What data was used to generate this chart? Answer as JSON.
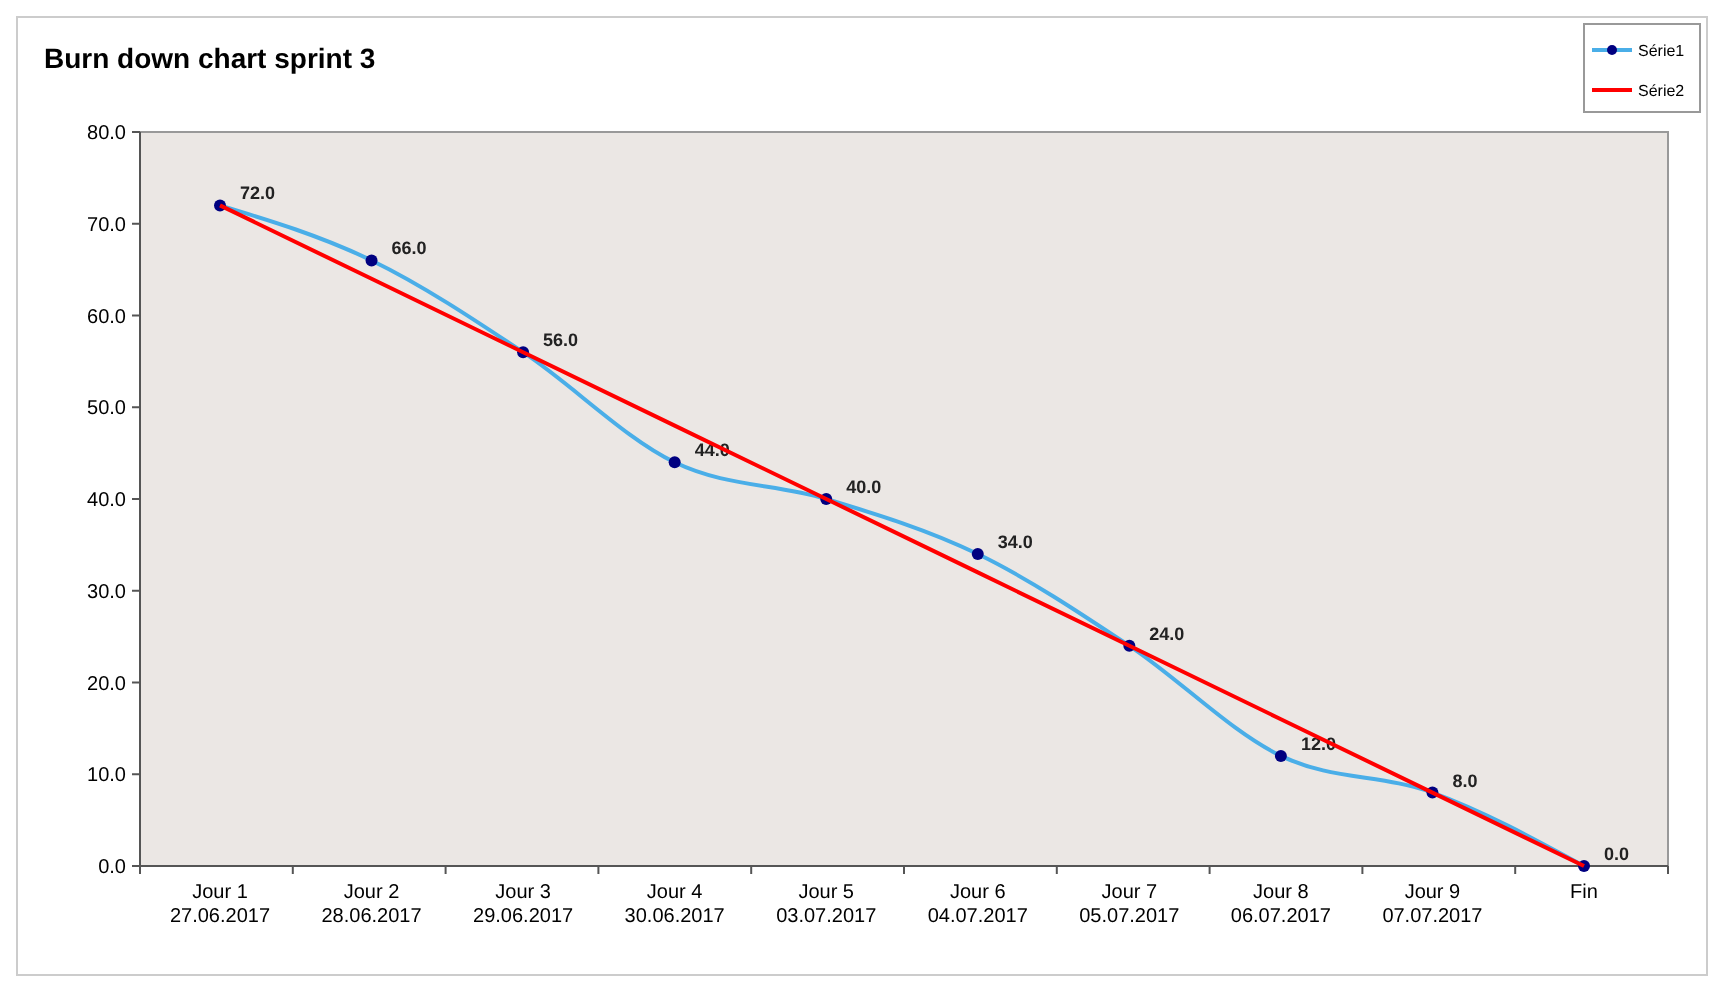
{
  "chart_data": {
    "type": "line",
    "title": "Burn down chart sprint 3",
    "categories": [
      "Jour 1\n27.06.2017",
      "Jour 2\n28.06.2017",
      "Jour 3\n29.06.2017",
      "Jour 4\n30.06.2017",
      "Jour 5\n03.07.2017",
      "Jour 6\n04.07.2017",
      "Jour 7\n05.07.2017",
      "Jour 8\n06.07.2017",
      "Jour 9\n07.07.2017",
      "Fin"
    ],
    "series": [
      {
        "name": "Série1",
        "color": "#4aaee8",
        "marker": "circle",
        "values": [
          72,
          66,
          56,
          44,
          40,
          34,
          24,
          12,
          8,
          0
        ],
        "value_labels": [
          "72.0",
          "66.0",
          "56.0",
          "44.0",
          "40.0",
          "34.0",
          "24.0",
          "12.0",
          "8.0",
          "0.0"
        ]
      },
      {
        "name": "Série2",
        "color": "#ff0000",
        "marker": "none",
        "values": [
          72,
          64,
          56,
          48,
          40,
          32,
          24,
          16,
          8,
          0
        ]
      }
    ],
    "ylim": [
      0,
      80
    ],
    "yticks": [
      {
        "value": 0,
        "label": "0.0"
      },
      {
        "value": 10,
        "label": "10.0"
      },
      {
        "value": 20,
        "label": "20.0"
      },
      {
        "value": 30,
        "label": "30.0"
      },
      {
        "value": 40,
        "label": "40.0"
      },
      {
        "value": 50,
        "label": "50.0"
      },
      {
        "value": 60,
        "label": "60.0"
      },
      {
        "value": 70,
        "label": "70.0"
      },
      {
        "value": 80,
        "label": "80.0"
      }
    ],
    "grid": false,
    "legend": "top right"
  }
}
